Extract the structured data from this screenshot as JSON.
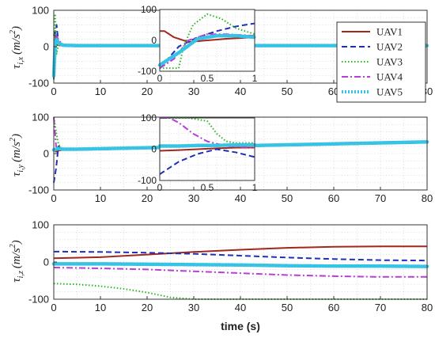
{
  "chart_data": [
    {
      "type": "line",
      "ylabel": "τ_{i,x} (m/s²)",
      "ylabel_sym": "τ",
      "ylabel_sub": "i,x",
      "ylabel_unit_open": "(m/s",
      "ylabel_unit_pow": "2",
      "ylabel_unit_close": ")",
      "xlim": [
        0,
        80
      ],
      "ylim": [
        -100,
        100
      ],
      "x_ticks": [
        0,
        10,
        20,
        30,
        40,
        50,
        60,
        70,
        80
      ],
      "y_ticks": [
        -100,
        0,
        100
      ],
      "grid": true,
      "legend_placement": "top-right",
      "series": [
        {
          "name": "UAV1",
          "color": "#a0281e",
          "style": "solid",
          "x": [
            0,
            0.2,
            0.5,
            1,
            2,
            5,
            80
          ],
          "y": [
            30,
            40,
            5,
            4,
            3,
            3,
            3
          ]
        },
        {
          "name": "UAV2",
          "color": "#1f2fb8",
          "style": "dashed",
          "x": [
            0,
            0.3,
            0.6,
            1,
            2,
            5,
            80
          ],
          "y": [
            -90,
            40,
            60,
            10,
            4,
            3,
            3
          ]
        },
        {
          "name": "UAV3",
          "color": "#27b81e",
          "style": "dotted",
          "x": [
            0,
            0.2,
            0.3,
            0.6,
            1,
            2,
            5,
            80
          ],
          "y": [
            -90,
            80,
            90,
            -20,
            5,
            3,
            3,
            3
          ]
        },
        {
          "name": "UAV4",
          "color": "#b63fd6",
          "style": "dashdot",
          "x": [
            0,
            0.3,
            0.6,
            1,
            2,
            5,
            80
          ],
          "y": [
            -80,
            20,
            30,
            20,
            3,
            3,
            3
          ]
        },
        {
          "name": "UAV5",
          "color": "#37c3e3",
          "style": "markers",
          "x": [
            0,
            0.3,
            0.6,
            1,
            2,
            5,
            80
          ],
          "y": [
            -80,
            10,
            20,
            10,
            4,
            3,
            3
          ]
        }
      ],
      "inset": {
        "xlim": [
          0,
          1
        ],
        "ylim": [
          -100,
          100
        ],
        "x_ticks": [
          0,
          0.5,
          1
        ],
        "y_ticks": [
          -100,
          0,
          100
        ],
        "series": [
          {
            "name": "UAV1",
            "x": [
              0,
              0.05,
              0.15,
              0.3,
              0.5,
              0.7,
              1
            ],
            "y": [
              30,
              30,
              10,
              -5,
              0,
              5,
              10
            ]
          },
          {
            "name": "UAV2",
            "x": [
              0,
              0.2,
              0.4,
              0.6,
              0.8,
              1
            ],
            "y": [
              -90,
              -20,
              10,
              30,
              45,
              55
            ]
          },
          {
            "name": "UAV3",
            "x": [
              0,
              0.2,
              0.25,
              0.35,
              0.5,
              0.65,
              0.8,
              1
            ],
            "y": [
              -90,
              -90,
              -20,
              50,
              85,
              70,
              40,
              20
            ]
          },
          {
            "name": "UAV4",
            "x": [
              0,
              0.15,
              0.3,
              0.5,
              0.7,
              1
            ],
            "y": [
              -90,
              -60,
              0,
              20,
              20,
              15
            ]
          },
          {
            "name": "UAV5",
            "x": [
              0,
              0.2,
              0.4,
              0.6,
              0.8,
              1
            ],
            "y": [
              -80,
              -40,
              5,
              15,
              15,
              10
            ]
          }
        ]
      }
    },
    {
      "type": "line",
      "ylabel": "τ_{i,y} (m/s²)",
      "ylabel_sym": "τ",
      "ylabel_sub": "i,y",
      "ylabel_unit_open": "(m/s",
      "ylabel_unit_pow": "2",
      "ylabel_unit_close": ")",
      "xlim": [
        0,
        80
      ],
      "ylim": [
        -100,
        100
      ],
      "x_ticks": [
        0,
        10,
        20,
        30,
        40,
        50,
        60,
        70,
        80
      ],
      "y_ticks": [
        -100,
        0,
        100
      ],
      "grid": true,
      "series": [
        {
          "name": "UAV1",
          "color": "#a0281e",
          "style": "solid",
          "x": [
            0,
            0.5,
            1,
            2,
            5,
            80
          ],
          "y": [
            10,
            5,
            8,
            10,
            10,
            30
          ]
        },
        {
          "name": "UAV2",
          "color": "#1f2fb8",
          "style": "dashed",
          "x": [
            0,
            0.5,
            1,
            2,
            5,
            80
          ],
          "y": [
            -80,
            -40,
            20,
            10,
            10,
            30
          ]
        },
        {
          "name": "UAV3",
          "color": "#27b81e",
          "style": "dotted",
          "x": [
            0,
            0.5,
            1,
            2,
            5,
            80
          ],
          "y": [
            100,
            60,
            25,
            10,
            10,
            30
          ]
        },
        {
          "name": "UAV4",
          "color": "#b63fd6",
          "style": "dashdot",
          "x": [
            0,
            0.5,
            1,
            2,
            5,
            80
          ],
          "y": [
            100,
            20,
            10,
            10,
            10,
            30
          ]
        },
        {
          "name": "UAV5",
          "color": "#37c3e3",
          "style": "markers",
          "x": [
            0,
            0.5,
            1,
            2,
            5,
            80
          ],
          "y": [
            10,
            12,
            14,
            12,
            12,
            32
          ]
        }
      ],
      "inset": {
        "xlim": [
          0,
          1
        ],
        "ylim": [
          -100,
          100
        ],
        "x_ticks": [
          0,
          0.5,
          1
        ],
        "y_ticks": [
          -100,
          0,
          100
        ],
        "series": [
          {
            "name": "UAV1",
            "x": [
              0,
              0.2,
              0.4,
              0.6,
              0.8,
              1
            ],
            "y": [
              -5,
              -3,
              0,
              3,
              5,
              5
            ]
          },
          {
            "name": "UAV2",
            "x": [
              0,
              0.2,
              0.4,
              0.6,
              0.8,
              1
            ],
            "y": [
              -80,
              -40,
              -15,
              0,
              -10,
              -25
            ]
          },
          {
            "name": "UAV3",
            "x": [
              0,
              0.3,
              0.5,
              0.6,
              0.7,
              0.8,
              1
            ],
            "y": [
              100,
              100,
              90,
              50,
              25,
              20,
              20
            ]
          },
          {
            "name": "UAV4",
            "x": [
              0,
              0.1,
              0.2,
              0.35,
              0.5,
              0.7,
              1
            ],
            "y": [
              100,
              100,
              85,
              50,
              25,
              10,
              5
            ]
          },
          {
            "name": "UAV5",
            "x": [
              0,
              0.2,
              0.4,
              0.6,
              0.8,
              1
            ],
            "y": [
              10,
              10,
              12,
              12,
              14,
              14
            ]
          }
        ]
      }
    },
    {
      "type": "line",
      "ylabel": "τ_{i,z} (m/s²)",
      "ylabel_sym": "τ",
      "ylabel_sub": "i,z",
      "ylabel_unit_open": "(m/s",
      "ylabel_unit_pow": "2",
      "ylabel_unit_close": ")",
      "xlabel": "time (s)",
      "xlim": [
        0,
        80
      ],
      "ylim": [
        -100,
        100
      ],
      "x_ticks": [
        0,
        10,
        20,
        30,
        40,
        50,
        60,
        70,
        80
      ],
      "y_ticks": [
        -100,
        0,
        100
      ],
      "grid": true,
      "series": [
        {
          "name": "UAV1",
          "color": "#a0281e",
          "style": "solid",
          "x": [
            0,
            10,
            20,
            30,
            40,
            50,
            60,
            70,
            80
          ],
          "y": [
            10,
            13,
            20,
            27,
            33,
            38,
            41,
            42,
            42
          ]
        },
        {
          "name": "UAV2",
          "color": "#1f2fb8",
          "style": "dashed",
          "x": [
            0,
            10,
            20,
            30,
            40,
            50,
            60,
            70,
            80
          ],
          "y": [
            28,
            27,
            25,
            22,
            17,
            12,
            8,
            5,
            4
          ]
        },
        {
          "name": "UAV3",
          "color": "#27b81e",
          "style": "dotted",
          "x": [
            0,
            5,
            10,
            15,
            20,
            25,
            30,
            40,
            50,
            60,
            70,
            80
          ],
          "y": [
            -58,
            -60,
            -65,
            -72,
            -82,
            -95,
            -100,
            -100,
            -100,
            -100,
            -100,
            -100
          ]
        },
        {
          "name": "UAV4",
          "color": "#b63fd6",
          "style": "dashdot",
          "x": [
            0,
            10,
            20,
            30,
            40,
            50,
            60,
            70,
            80
          ],
          "y": [
            -15,
            -17,
            -20,
            -25,
            -30,
            -35,
            -38,
            -40,
            -40
          ]
        },
        {
          "name": "UAV5",
          "color": "#37c3e3",
          "style": "markers",
          "x": [
            0,
            10,
            20,
            30,
            40,
            50,
            60,
            70,
            80
          ],
          "y": [
            -5,
            -5,
            -6,
            -7,
            -8,
            -10,
            -11,
            -11,
            -12
          ]
        }
      ]
    }
  ]
}
